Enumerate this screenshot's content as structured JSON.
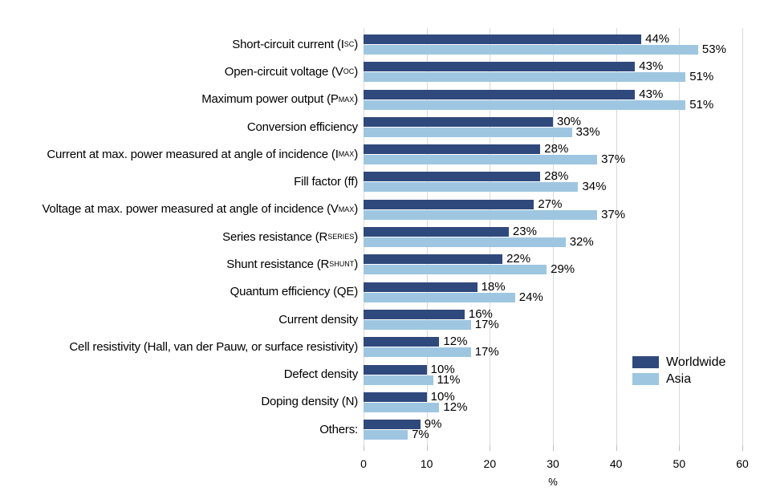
{
  "chart_data": {
    "type": "bar",
    "orientation": "horizontal",
    "title": "",
    "xlabel": "%",
    "xlim": [
      0,
      60
    ],
    "xticks": [
      "0",
      "10",
      "20",
      "30",
      "40",
      "50",
      "60"
    ],
    "grid": true,
    "value_suffix": "%",
    "colors": {
      "worldwide": "#30497c",
      "asia": "#9ec6e1",
      "gridline": "#d9d9d9",
      "tick": "#bfbfbf",
      "text": "#000000"
    },
    "legend": {
      "position": "middle-right",
      "entries": [
        {
          "label": "Worldwide",
          "color": "#30497c"
        },
        {
          "label": "Asia",
          "color": "#9ec6e1"
        }
      ]
    },
    "categories": [
      {
        "pre": "Short-circuit current (I",
        "sub": "SC",
        "post": ")"
      },
      {
        "pre": "Open-circuit voltage (V",
        "sub": "OC",
        "post": ")"
      },
      {
        "pre": "Maximum power output (P",
        "sub": "MAX",
        "post": ")"
      },
      {
        "pre": "Conversion efficiency",
        "sub": "",
        "post": ""
      },
      {
        "pre": "Current at max. power measured at angle of incidence (I",
        "sub": "MAX",
        "post": ")"
      },
      {
        "pre": "Fill factor (ff)",
        "sub": "",
        "post": ""
      },
      {
        "pre": "Voltage at max. power measured at angle of incidence (V",
        "sub": "MAX",
        "post": ")"
      },
      {
        "pre": "Series resistance (R",
        "sub": "SERIES",
        "post": ")"
      },
      {
        "pre": "Shunt resistance (R",
        "sub": "SHUNT",
        "post": ")"
      },
      {
        "pre": "Quantum efficiency (QE)",
        "sub": "",
        "post": ""
      },
      {
        "pre": "Current density",
        "sub": "",
        "post": ""
      },
      {
        "pre": "Cell resistivity (Hall, van der Pauw, or surface resistivity)",
        "sub": "",
        "post": ""
      },
      {
        "pre": "Defect density",
        "sub": "",
        "post": ""
      },
      {
        "pre": "Doping density (N)",
        "sub": "",
        "post": ""
      },
      {
        "pre": "Others:",
        "sub": "",
        "post": ""
      }
    ],
    "series": [
      {
        "name": "Worldwide",
        "color": "#30497c",
        "values": [
          44,
          43,
          43,
          30,
          28,
          28,
          27,
          23,
          22,
          18,
          16,
          12,
          10,
          10,
          9
        ]
      },
      {
        "name": "Asia",
        "color": "#9ec6e1",
        "values": [
          53,
          51,
          51,
          33,
          37,
          34,
          37,
          32,
          29,
          24,
          17,
          17,
          11,
          12,
          7
        ]
      }
    ]
  }
}
